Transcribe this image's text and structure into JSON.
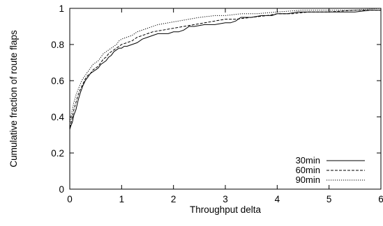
{
  "chart_data": {
    "type": "line",
    "title": "",
    "xlabel": "Throughput delta",
    "ylabel": "Cumulative fraction of route flaps",
    "xlim": [
      0,
      6
    ],
    "ylim": [
      0,
      1
    ],
    "x_ticks": [
      "0",
      "1",
      "2",
      "3",
      "4",
      "5",
      "6"
    ],
    "y_ticks": [
      "0",
      "0.2",
      "0.4",
      "0.6",
      "0.8",
      "1"
    ],
    "grid": false,
    "legend_position": "bottom-right",
    "series": [
      {
        "name": "30min",
        "line_style": "solid",
        "color": "#000000",
        "x": [
          0,
          0.02,
          0.05,
          0.08,
          0.12,
          0.16,
          0.2,
          0.25,
          0.3,
          0.35,
          0.4,
          0.45,
          0.5,
          0.55,
          0.6,
          0.65,
          0.7,
          0.75,
          0.8,
          0.85,
          0.9,
          0.95,
          1.0,
          1.05,
          1.1,
          1.2,
          1.3,
          1.4,
          1.5,
          1.6,
          1.7,
          1.8,
          1.9,
          2.0,
          2.1,
          2.2,
          2.3,
          2.4,
          2.6,
          2.8,
          3.0,
          3.1,
          3.2,
          3.3,
          3.5,
          3.7,
          3.9,
          4.0,
          4.2,
          4.4,
          4.6,
          4.8,
          5.0,
          5.2,
          5.5,
          5.8,
          6.0
        ],
        "values": [
          0.33,
          0.35,
          0.37,
          0.41,
          0.44,
          0.49,
          0.53,
          0.57,
          0.6,
          0.62,
          0.64,
          0.65,
          0.66,
          0.67,
          0.69,
          0.7,
          0.71,
          0.73,
          0.74,
          0.76,
          0.77,
          0.78,
          0.78,
          0.79,
          0.79,
          0.8,
          0.81,
          0.83,
          0.84,
          0.85,
          0.86,
          0.86,
          0.86,
          0.87,
          0.87,
          0.88,
          0.9,
          0.9,
          0.91,
          0.91,
          0.92,
          0.92,
          0.93,
          0.95,
          0.95,
          0.96,
          0.96,
          0.97,
          0.97,
          0.98,
          0.98,
          0.98,
          0.98,
          0.98,
          0.98,
          0.99,
          0.99
        ]
      },
      {
        "name": "60min",
        "line_style": "dashed",
        "color": "#000000",
        "x": [
          0,
          0.02,
          0.05,
          0.08,
          0.12,
          0.16,
          0.2,
          0.25,
          0.3,
          0.35,
          0.4,
          0.45,
          0.5,
          0.55,
          0.6,
          0.65,
          0.7,
          0.75,
          0.8,
          0.85,
          0.9,
          0.95,
          1.0,
          1.1,
          1.2,
          1.3,
          1.4,
          1.5,
          1.6,
          1.8,
          2.0,
          2.2,
          2.4,
          2.6,
          2.8,
          3.0,
          3.2,
          3.5,
          3.8,
          4.0,
          4.3,
          4.6,
          5.0,
          5.5,
          6.0
        ],
        "values": [
          0.34,
          0.36,
          0.4,
          0.44,
          0.48,
          0.52,
          0.55,
          0.58,
          0.61,
          0.63,
          0.64,
          0.66,
          0.67,
          0.68,
          0.7,
          0.72,
          0.73,
          0.75,
          0.76,
          0.77,
          0.78,
          0.79,
          0.8,
          0.81,
          0.82,
          0.84,
          0.85,
          0.86,
          0.87,
          0.88,
          0.89,
          0.9,
          0.91,
          0.92,
          0.93,
          0.94,
          0.94,
          0.95,
          0.96,
          0.97,
          0.97,
          0.98,
          0.98,
          0.99,
          0.99
        ]
      },
      {
        "name": "90min",
        "line_style": "dotted",
        "color": "#000000",
        "x": [
          0,
          0.02,
          0.05,
          0.08,
          0.12,
          0.16,
          0.2,
          0.25,
          0.3,
          0.35,
          0.4,
          0.45,
          0.5,
          0.55,
          0.6,
          0.65,
          0.7,
          0.75,
          0.8,
          0.85,
          0.9,
          0.95,
          1.0,
          1.1,
          1.2,
          1.3,
          1.4,
          1.5,
          1.7,
          1.9,
          2.1,
          2.3,
          2.5,
          2.8,
          3.0,
          3.3,
          3.6,
          4.0,
          4.5,
          5.0,
          5.5,
          6.0
        ],
        "values": [
          0.36,
          0.4,
          0.44,
          0.48,
          0.52,
          0.55,
          0.58,
          0.61,
          0.63,
          0.65,
          0.67,
          0.69,
          0.7,
          0.71,
          0.73,
          0.75,
          0.76,
          0.77,
          0.78,
          0.79,
          0.8,
          0.82,
          0.83,
          0.84,
          0.85,
          0.87,
          0.88,
          0.89,
          0.91,
          0.92,
          0.93,
          0.94,
          0.95,
          0.96,
          0.96,
          0.97,
          0.97,
          0.98,
          0.99,
          0.99,
          0.99,
          1.0
        ]
      }
    ]
  }
}
